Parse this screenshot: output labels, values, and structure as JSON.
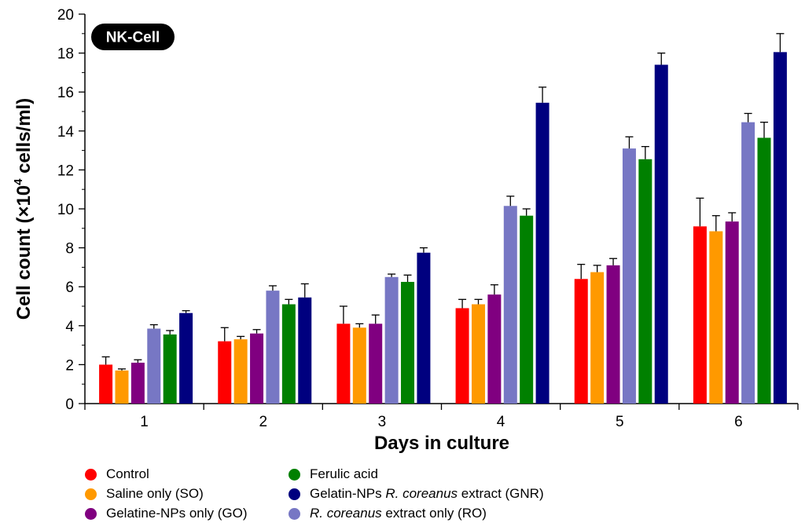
{
  "chart_data": {
    "type": "bar",
    "badge": "NK-Cell",
    "xlabel": "Days in culture",
    "ylabel_main": "Cell count (×10",
    "ylabel_sup": "4",
    "ylabel_tail": " cells/ml)",
    "ylim": [
      0,
      20
    ],
    "yticks": [
      0,
      2,
      4,
      6,
      8,
      10,
      12,
      14,
      16,
      18,
      20
    ],
    "categories": [
      "1",
      "2",
      "3",
      "4",
      "5",
      "6"
    ],
    "series": [
      {
        "name": "Control",
        "color": "#ff0000",
        "values": [
          2.0,
          3.2,
          4.1,
          4.9,
          6.4,
          9.1
        ],
        "errors": [
          0.4,
          0.7,
          0.9,
          0.45,
          0.75,
          1.45
        ]
      },
      {
        "name": "Saline only (SO)",
        "color": "#ff9900",
        "values": [
          1.7,
          3.3,
          3.9,
          5.1,
          6.75,
          8.85
        ],
        "errors": [
          0.08,
          0.15,
          0.2,
          0.25,
          0.35,
          0.8
        ]
      },
      {
        "name": "Gelatine-NPs only (GO)",
        "color": "#800080",
        "values": [
          2.1,
          3.6,
          4.1,
          5.6,
          7.1,
          9.35
        ],
        "errors": [
          0.15,
          0.2,
          0.45,
          0.5,
          0.35,
          0.45
        ]
      },
      {
        "name": "R. coreanus extract only (RO)",
        "color": "#7777c4",
        "values": [
          3.85,
          5.8,
          6.5,
          10.15,
          13.1,
          14.45
        ],
        "errors": [
          0.2,
          0.25,
          0.15,
          0.5,
          0.6,
          0.45
        ]
      },
      {
        "name": "Ferulic acid",
        "color": "#008000",
        "values": [
          3.55,
          5.1,
          6.25,
          9.65,
          12.55,
          13.65
        ],
        "errors": [
          0.2,
          0.25,
          0.35,
          0.35,
          0.65,
          0.8
        ]
      },
      {
        "name": "Gelatin-NPs R. coreanus extract (GNR)",
        "color": "#00007f",
        "values": [
          4.65,
          5.45,
          7.75,
          15.45,
          17.4,
          18.05
        ],
        "errors": [
          0.12,
          0.7,
          0.25,
          0.8,
          0.6,
          0.95
        ]
      }
    ]
  },
  "legend": [
    {
      "pre": "Control",
      "ital": "",
      "post": "",
      "color": "#ff0000"
    },
    {
      "pre": "Saline only (SO)",
      "ital": "",
      "post": "",
      "color": "#ff9900"
    },
    {
      "pre": "Gelatine-NPs only (GO)",
      "ital": "",
      "post": "",
      "color": "#800080"
    },
    {
      "pre": "Ferulic acid",
      "ital": "",
      "post": "",
      "color": "#008000"
    },
    {
      "pre": "Gelatin-NPs ",
      "ital": "R. coreanus",
      "post": " extract (GNR)",
      "color": "#00007f"
    },
    {
      "pre": "",
      "ital": "R. coreanus",
      "post": " extract only (RO)",
      "color": "#7777c4"
    }
  ]
}
